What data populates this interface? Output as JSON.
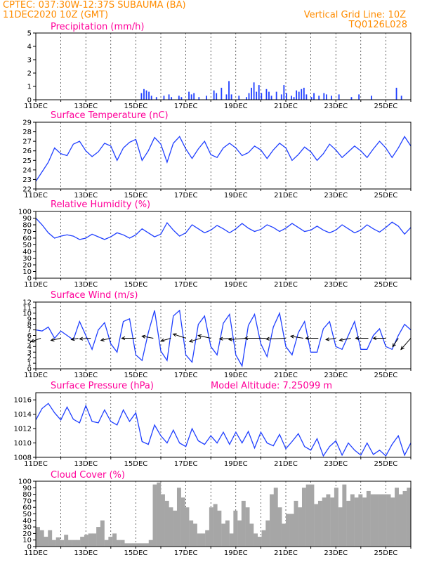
{
  "header": {
    "line1": "CPTEC:   037:30W-12:37S   SUBAUMA (BA)",
    "line2": "11DEC2020 10Z (GMT)",
    "grid_note": "Vertical Grid Line: 10Z",
    "code": "TQ0126L028"
  },
  "colors": {
    "header": "#ff8c00",
    "titles": "#ff0099",
    "series": "#1f3fff",
    "clouds": "#a6a6a6",
    "wind_arrows": "#000000"
  },
  "x_tick_labels": [
    "11DEC",
    "13DEC",
    "15DEC",
    "17DEC",
    "19DEC",
    "21DEC",
    "23DEC",
    "25DEC"
  ],
  "chart_data": [
    {
      "type": "bar",
      "title": "Precipitation (mm/h)",
      "ylim": [
        0,
        5
      ],
      "yticks": [
        0,
        1,
        2,
        3,
        4,
        5
      ],
      "x_range_days": [
        0,
        15
      ],
      "bars": [
        [
          4.2,
          0.5
        ],
        [
          4.3,
          0.8
        ],
        [
          4.4,
          0.7
        ],
        [
          4.5,
          0.6
        ],
        [
          4.6,
          0.3
        ],
        [
          4.8,
          0.2
        ],
        [
          5.1,
          0.3
        ],
        [
          5.3,
          0.4
        ],
        [
          5.4,
          0.2
        ],
        [
          5.7,
          0.3
        ],
        [
          5.8,
          0.2
        ],
        [
          6.1,
          0.6
        ],
        [
          6.2,
          0.4
        ],
        [
          6.3,
          0.5
        ],
        [
          6.5,
          0.2
        ],
        [
          6.8,
          0.3
        ],
        [
          7.1,
          0.7
        ],
        [
          7.2,
          0.5
        ],
        [
          7.4,
          0.9
        ],
        [
          7.6,
          0.4
        ],
        [
          7.7,
          1.4
        ],
        [
          7.8,
          0.4
        ],
        [
          8.1,
          0.3
        ],
        [
          8.4,
          0.2
        ],
        [
          8.5,
          0.5
        ],
        [
          8.6,
          0.9
        ],
        [
          8.7,
          1.3
        ],
        [
          8.8,
          0.6
        ],
        [
          8.9,
          1.1
        ],
        [
          9.0,
          0.5
        ],
        [
          9.2,
          0.8
        ],
        [
          9.3,
          0.6
        ],
        [
          9.4,
          0.3
        ],
        [
          9.6,
          0.6
        ],
        [
          9.8,
          0.4
        ],
        [
          9.9,
          1.1
        ],
        [
          10.0,
          0.5
        ],
        [
          10.2,
          0.3
        ],
        [
          10.3,
          0.2
        ],
        [
          10.4,
          0.7
        ],
        [
          10.5,
          0.6
        ],
        [
          10.6,
          0.8
        ],
        [
          10.7,
          0.9
        ],
        [
          10.8,
          0.4
        ],
        [
          11.0,
          0.2
        ],
        [
          11.1,
          0.5
        ],
        [
          11.3,
          0.3
        ],
        [
          11.5,
          0.5
        ],
        [
          11.6,
          0.4
        ],
        [
          11.8,
          0.3
        ],
        [
          12.1,
          0.4
        ],
        [
          12.6,
          0.2
        ],
        [
          12.9,
          0.4
        ],
        [
          13.4,
          0.3
        ],
        [
          14.4,
          0.9
        ],
        [
          14.6,
          0.3
        ]
      ]
    },
    {
      "type": "line",
      "title": "Surface Temperature (nC)",
      "ylim": [
        22,
        29
      ],
      "yticks": [
        22,
        23,
        24,
        25,
        26,
        27,
        28,
        29
      ],
      "x": [
        0,
        0.25,
        0.5,
        0.75,
        1,
        1.25,
        1.5,
        1.75,
        2,
        2.25,
        2.5,
        2.75,
        3,
        3.25,
        3.5,
        3.75,
        4,
        4.25,
        4.5,
        4.75,
        5,
        5.25,
        5.5,
        5.75,
        6,
        6.25,
        6.5,
        6.75,
        7,
        7.25,
        7.5,
        7.75,
        8,
        8.25,
        8.5,
        8.75,
        9,
        9.25,
        9.5,
        9.75,
        10,
        10.25,
        10.5,
        10.75,
        11,
        11.25,
        11.5,
        11.75,
        12,
        12.25,
        12.5,
        12.75,
        13,
        13.25,
        13.5,
        13.75,
        14,
        14.25,
        14.5,
        14.75,
        15
      ],
      "values": [
        22.8,
        23.8,
        24.8,
        26.3,
        25.7,
        25.5,
        26.7,
        27.0,
        26.0,
        25.4,
        25.9,
        26.8,
        26.5,
        25.0,
        26.3,
        26.9,
        27.2,
        25.0,
        26.0,
        27.4,
        26.7,
        24.8,
        26.8,
        27.5,
        26.2,
        25.2,
        26.2,
        27.0,
        25.6,
        25.3,
        26.3,
        26.8,
        26.3,
        25.5,
        25.8,
        26.5,
        26.1,
        25.2,
        26.1,
        26.8,
        26.3,
        25.0,
        25.6,
        26.4,
        25.9,
        25.0,
        25.7,
        26.7,
        26.1,
        25.3,
        25.9,
        26.5,
        26.0,
        25.3,
        26.2,
        27.0,
        26.3,
        25.3,
        26.3,
        27.5,
        26.5
      ]
    },
    {
      "type": "line",
      "title": "Relative Humidity (%)",
      "ylim": [
        0,
        100
      ],
      "yticks": [
        0,
        10,
        20,
        30,
        40,
        50,
        60,
        70,
        80,
        90,
        100
      ],
      "x": [
        0,
        0.25,
        0.5,
        0.75,
        1,
        1.25,
        1.5,
        1.75,
        2,
        2.25,
        2.5,
        2.75,
        3,
        3.25,
        3.5,
        3.75,
        4,
        4.25,
        4.5,
        4.75,
        5,
        5.25,
        5.5,
        5.75,
        6,
        6.25,
        6.5,
        6.75,
        7,
        7.25,
        7.5,
        7.75,
        8,
        8.25,
        8.5,
        8.75,
        9,
        9.25,
        9.5,
        9.75,
        10,
        10.25,
        10.5,
        10.75,
        11,
        11.25,
        11.5,
        11.75,
        12,
        12.25,
        12.5,
        12.75,
        13,
        13.25,
        13.5,
        13.75,
        14,
        14.25,
        14.5,
        14.75,
        15
      ],
      "values": [
        90,
        80,
        68,
        60,
        63,
        65,
        63,
        58,
        60,
        66,
        62,
        58,
        62,
        68,
        65,
        60,
        65,
        74,
        68,
        62,
        66,
        83,
        72,
        63,
        68,
        80,
        74,
        68,
        72,
        79,
        74,
        68,
        74,
        82,
        75,
        70,
        73,
        80,
        76,
        70,
        75,
        82,
        76,
        70,
        72,
        78,
        72,
        68,
        72,
        80,
        74,
        68,
        72,
        80,
        74,
        69,
        76,
        84,
        78,
        66,
        76
      ]
    },
    {
      "type": "line",
      "title": "Surface Wind (m/s)",
      "ylim": [
        0,
        12
      ],
      "yticks": [
        0,
        1,
        2,
        3,
        4,
        5,
        6,
        7,
        8,
        9,
        10,
        11,
        12
      ],
      "x": [
        0,
        0.25,
        0.5,
        0.75,
        1,
        1.25,
        1.5,
        1.75,
        2,
        2.25,
        2.5,
        2.75,
        3,
        3.25,
        3.5,
        3.75,
        4,
        4.25,
        4.5,
        4.75,
        5,
        5.25,
        5.5,
        5.75,
        6,
        6.25,
        6.5,
        6.75,
        7,
        7.25,
        7.5,
        7.75,
        8,
        8.25,
        8.5,
        8.75,
        9,
        9.25,
        9.5,
        9.75,
        10,
        10.25,
        10.5,
        10.75,
        11,
        11.25,
        11.5,
        11.75,
        12,
        12.25,
        12.5,
        12.75,
        13,
        13.25,
        13.5,
        13.75,
        14,
        14.25,
        14.5,
        14.75,
        15
      ],
      "values": [
        7,
        6.8,
        7.5,
        5.5,
        6.8,
        6,
        5.2,
        8.5,
        6,
        3.5,
        7,
        8.3,
        4.5,
        3,
        8.5,
        9,
        2.5,
        1.5,
        6.5,
        10.5,
        3.2,
        1.5,
        9.5,
        10.5,
        2.5,
        1.2,
        8,
        9.5,
        4,
        2.5,
        8.2,
        9.8,
        2.5,
        0.5,
        7.8,
        9.8,
        4.5,
        2.2,
        7.5,
        10,
        4,
        2.5,
        6.5,
        8.5,
        3,
        3,
        7.2,
        8.5,
        4,
        3.5,
        6,
        8.5,
        3.5,
        3.5,
        6,
        7.2,
        4,
        3.5,
        6,
        8,
        7
      ],
      "arrows": [
        {
          "x": 0.2,
          "dx": -14,
          "dy": 5
        },
        {
          "x": 1.0,
          "dx": -14,
          "dy": 3
        },
        {
          "x": 1.7,
          "dx": -10,
          "dy": 2
        },
        {
          "x": 2.2,
          "dx": -16,
          "dy": 1
        },
        {
          "x": 3.0,
          "dx": -14,
          "dy": 3
        },
        {
          "x": 4.0,
          "dx": -20,
          "dy": 0
        },
        {
          "x": 4.7,
          "dx": -16,
          "dy": -3
        },
        {
          "x": 5.4,
          "dx": -14,
          "dy": 4
        },
        {
          "x": 6.0,
          "dx": -18,
          "dy": -6
        },
        {
          "x": 6.6,
          "dx": -16,
          "dy": 5
        },
        {
          "x": 7.0,
          "dx": -18,
          "dy": -4
        },
        {
          "x": 7.8,
          "dx": -16,
          "dy": 1
        },
        {
          "x": 8.4,
          "dx": -24,
          "dy": 2
        },
        {
          "x": 9.2,
          "dx": -30,
          "dy": 0
        },
        {
          "x": 10.0,
          "dx": -28,
          "dy": 1
        },
        {
          "x": 10.7,
          "dx": -18,
          "dy": -3
        },
        {
          "x": 11.3,
          "dx": -18,
          "dy": 0
        },
        {
          "x": 12.0,
          "dx": -14,
          "dy": 2
        },
        {
          "x": 12.6,
          "dx": -16,
          "dy": 3
        },
        {
          "x": 13.3,
          "dx": -18,
          "dy": 0
        },
        {
          "x": 14.0,
          "dx": -18,
          "dy": 0
        },
        {
          "x": 14.5,
          "dx": -8,
          "dy": 12
        },
        {
          "x": 15.0,
          "dx": -14,
          "dy": 16
        }
      ]
    },
    {
      "type": "line",
      "title": "Surface Pressure (hPa)",
      "subtitle": "Model Altitude: 7.25099 m",
      "ylim": [
        1008,
        1017
      ],
      "yticks": [
        1008,
        1010,
        1012,
        1014,
        1016
      ],
      "x": [
        0,
        0.25,
        0.5,
        0.75,
        1,
        1.25,
        1.5,
        1.75,
        2,
        2.25,
        2.5,
        2.75,
        3,
        3.25,
        3.5,
        3.75,
        4,
        4.25,
        4.5,
        4.75,
        5,
        5.25,
        5.5,
        5.75,
        6,
        6.25,
        6.5,
        6.75,
        7,
        7.25,
        7.5,
        7.75,
        8,
        8.25,
        8.5,
        8.75,
        9,
        9.25,
        9.5,
        9.75,
        10,
        10.25,
        10.5,
        10.75,
        11,
        11.25,
        11.5,
        11.75,
        12,
        12.25,
        12.5,
        12.75,
        13,
        13.25,
        13.5,
        13.75,
        14,
        14.25,
        14.5,
        14.75,
        15
      ],
      "values": [
        1013.2,
        1014.8,
        1015.5,
        1014.2,
        1013.2,
        1015.0,
        1013.3,
        1012.8,
        1015.2,
        1013.0,
        1012.8,
        1014.6,
        1013.0,
        1012.5,
        1014.6,
        1013.0,
        1014.2,
        1010.2,
        1009.8,
        1012.5,
        1011.0,
        1010.0,
        1011.8,
        1010.0,
        1009.5,
        1012.0,
        1010.3,
        1009.8,
        1011.0,
        1010.0,
        1011.5,
        1009.8,
        1011.5,
        1010.0,
        1011.6,
        1009.3,
        1011.5,
        1010.0,
        1009.6,
        1011.2,
        1009.2,
        1010.2,
        1011.3,
        1009.5,
        1009.0,
        1010.6,
        1008.2,
        1009.5,
        1010.3,
        1008.3,
        1010.0,
        1009.0,
        1008.3,
        1010.0,
        1008.4,
        1009.0,
        1008.2,
        1009.8,
        1011.0,
        1008.3,
        1010.0
      ]
    },
    {
      "type": "bar",
      "title": "Cloud Cover (%)",
      "ylim": [
        0,
        100
      ],
      "yticks": [
        0,
        10,
        20,
        30,
        40,
        50,
        60,
        70,
        80,
        90,
        100
      ],
      "values": [
        30,
        25,
        15,
        25,
        10,
        14,
        10,
        18,
        10,
        10,
        10,
        15,
        18,
        20,
        20,
        30,
        40,
        10,
        15,
        20,
        10,
        10,
        5,
        5,
        5,
        5,
        5,
        5,
        10,
        95,
        98,
        80,
        70,
        60,
        55,
        90,
        75,
        60,
        40,
        35,
        20,
        20,
        25,
        60,
        65,
        55,
        35,
        40,
        20,
        55,
        40,
        70,
        60,
        35,
        20,
        15,
        25,
        40,
        80,
        90,
        60,
        35,
        50,
        50,
        70,
        60,
        90,
        95,
        95,
        65,
        70,
        75,
        80,
        75,
        90,
        60,
        95,
        70,
        80,
        75,
        80,
        75,
        85,
        80,
        80,
        80,
        80,
        80,
        75,
        90,
        80,
        85,
        90
      ]
    }
  ]
}
